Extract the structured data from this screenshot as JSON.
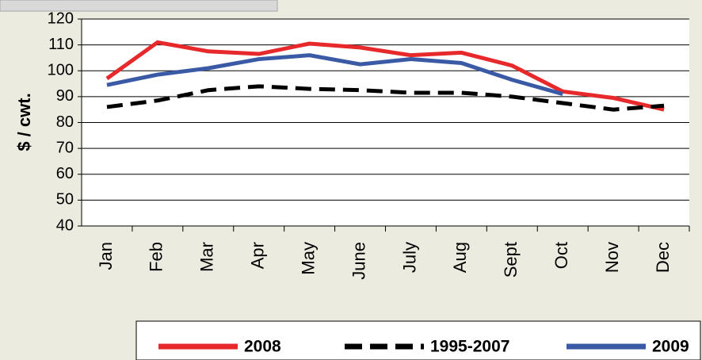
{
  "chart_data": {
    "type": "line",
    "y_label": "$ / cwt.",
    "categories": [
      "Jan",
      "Feb",
      "Mar",
      "Apr",
      "May",
      "June",
      "July",
      "Aug",
      "Sept",
      "Oct",
      "Nov",
      "Dec"
    ],
    "series": [
      {
        "name": "2008",
        "color": "#e8292b",
        "dash": "solid",
        "values": [
          97,
          111,
          107.5,
          106.5,
          110.5,
          109,
          106,
          107,
          102,
          92,
          89.5,
          85
        ]
      },
      {
        "name": "1995-2007",
        "color": "#000000",
        "dash": "dashed",
        "values": [
          86,
          88.5,
          92.5,
          94,
          93,
          92.5,
          91.5,
          91.5,
          90,
          87.5,
          85,
          86.5
        ]
      },
      {
        "name": "2009",
        "color": "#3b5aa6",
        "dash": "solid",
        "values": [
          94.5,
          98.5,
          101,
          104.5,
          106,
          102.5,
          104.5,
          103,
          96.5,
          91,
          null,
          null
        ]
      }
    ],
    "ylim": [
      40,
      120
    ],
    "yticks": [
      40,
      50,
      60,
      70,
      80,
      90,
      100,
      110,
      120
    ],
    "grid": true,
    "legend": "bottom"
  }
}
